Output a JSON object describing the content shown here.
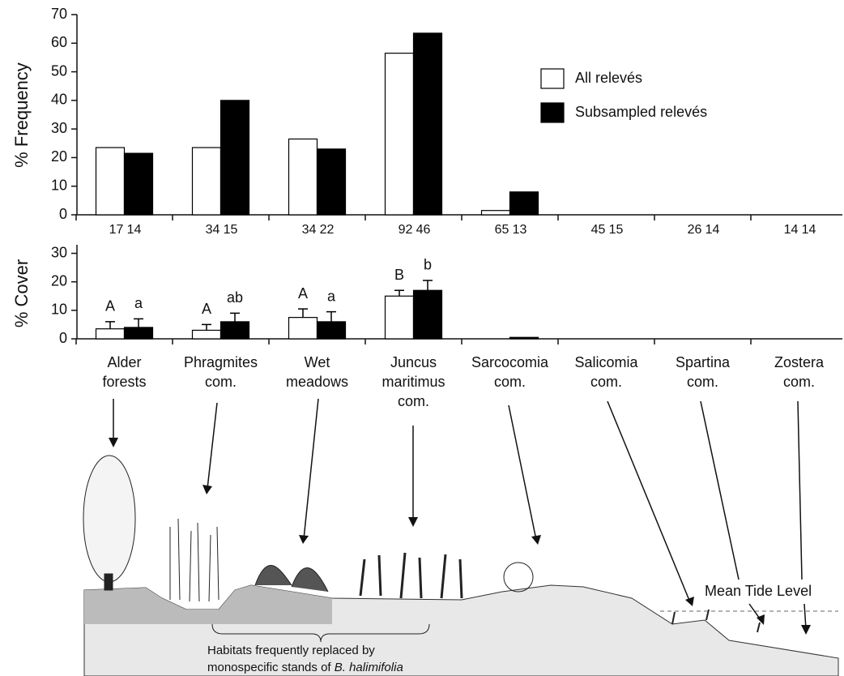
{
  "chart_data": [
    {
      "type": "bar",
      "ylabel": "% Frequency",
      "ylim": [
        0,
        70
      ],
      "yticks": [
        0,
        10,
        20,
        30,
        40,
        50,
        60,
        70
      ],
      "legend": "upper right",
      "series": [
        {
          "name": "All relevés",
          "color": "#ffffff",
          "values": [
            23.5,
            23.5,
            26.5,
            56.5,
            1.5,
            0,
            0,
            0
          ],
          "n": [
            17,
            34,
            34,
            92,
            65,
            45,
            26,
            14
          ]
        },
        {
          "name": "Subsampled relevés",
          "color": "#000000",
          "values": [
            21.5,
            40,
            23,
            63.5,
            8,
            0,
            0,
            0
          ],
          "n": [
            14,
            15,
            22,
            46,
            13,
            15,
            14,
            14
          ]
        }
      ]
    },
    {
      "type": "bar",
      "ylabel": "% Cover",
      "ylim": [
        0,
        33
      ],
      "yticks": [
        0,
        10,
        20,
        30
      ],
      "categories": [
        "Alder\nforests",
        "Phragmites\ncom.",
        "Wet\nmeadows",
        "Juncus\nmaritimus\ncom.",
        "Sarcocomia\ncom.",
        "Salicomia\ncom.",
        "Spartina\ncom.",
        "Zostera\ncom."
      ],
      "series": [
        {
          "color": "#ffffff",
          "values": [
            3.5,
            3,
            7.5,
            15,
            0,
            0,
            0,
            0
          ],
          "errors": [
            2.5,
            2,
            3,
            2,
            null,
            null,
            null,
            null
          ],
          "letters": [
            "A",
            "A",
            "A",
            "B",
            null,
            null,
            null,
            null
          ]
        },
        {
          "color": "#000000",
          "values": [
            4,
            6,
            6,
            17,
            0.5,
            0,
            0,
            0
          ],
          "errors": [
            3,
            3,
            3.5,
            3.5,
            null,
            null,
            null,
            null
          ],
          "letters": [
            "a",
            "ab",
            "a",
            "b",
            null,
            null,
            null,
            null
          ]
        }
      ]
    }
  ],
  "annotations": {
    "mean_tide": "Mean Tide Level",
    "habitats_line1": "Habitats frequently replaced by",
    "habitats_line2": "monospecific stands of ",
    "habitats_species": "B. halimifolia"
  }
}
